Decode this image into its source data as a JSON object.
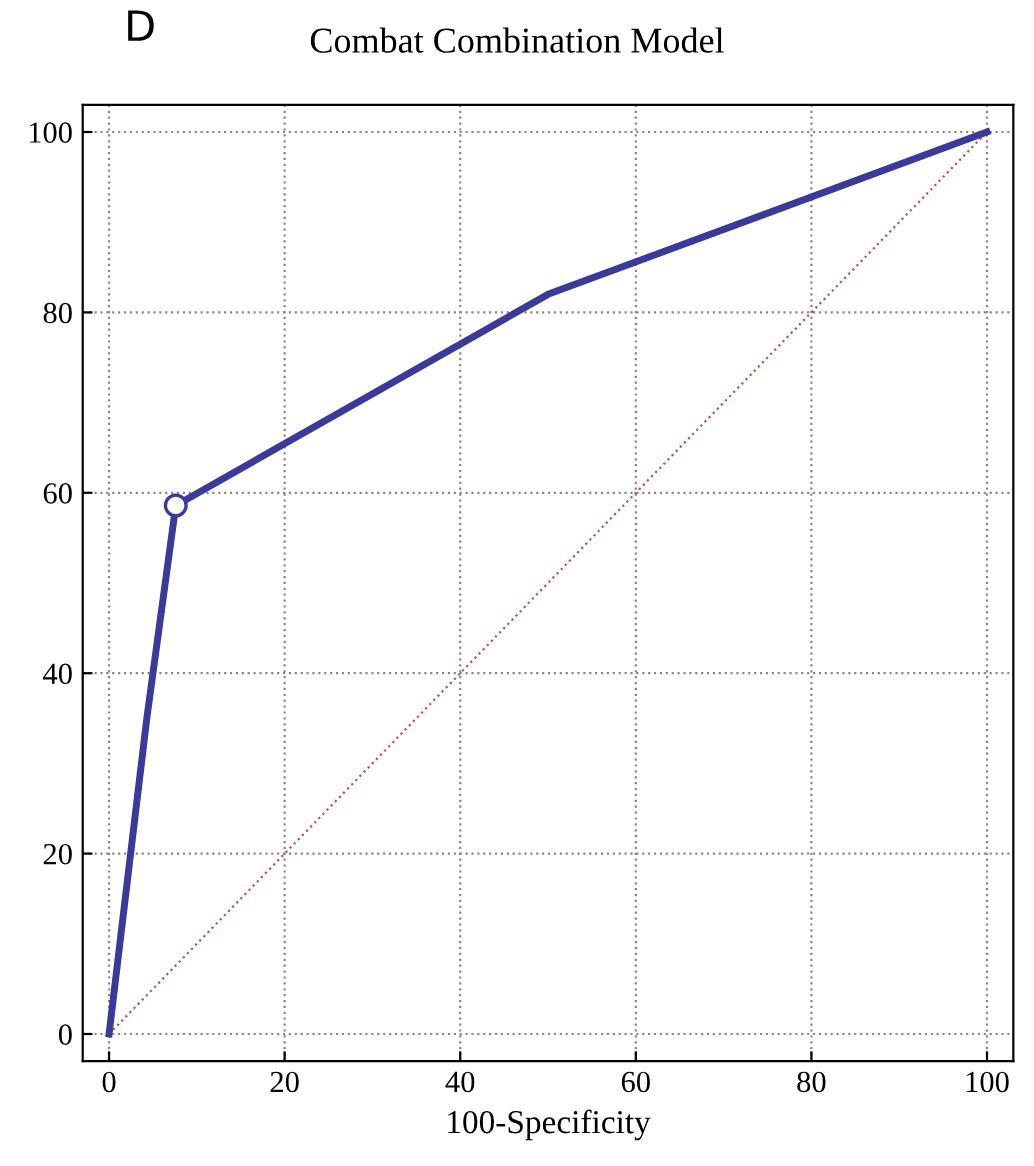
{
  "chart_data": {
    "type": "line",
    "title": "Combat Combination Model",
    "xlabel": "100-Specificity",
    "annotations": [
      "D"
    ],
    "xlim": [
      -3,
      103
    ],
    "ylim": [
      -3,
      103
    ],
    "xticks": [
      0,
      20,
      40,
      60,
      80,
      100
    ],
    "yticks": [
      0,
      20,
      40,
      60,
      80,
      100
    ],
    "grid": true,
    "series": [
      {
        "type": "line",
        "color": "#c0504d",
        "line_style": "dotted",
        "x": [
          0,
          100
        ],
        "values": [
          0,
          100
        ]
      },
      {
        "type": "line",
        "color": "#3a3a9a",
        "line_style": "solid",
        "x": [
          0,
          4.3,
          7.6,
          50,
          100
        ],
        "values": [
          0,
          35,
          58.6,
          82,
          100
        ]
      },
      {
        "type": "scatter",
        "color": "#3a3a9a",
        "marker": "circle",
        "x": [
          7.6
        ],
        "values": [
          58.6
        ]
      }
    ]
  }
}
